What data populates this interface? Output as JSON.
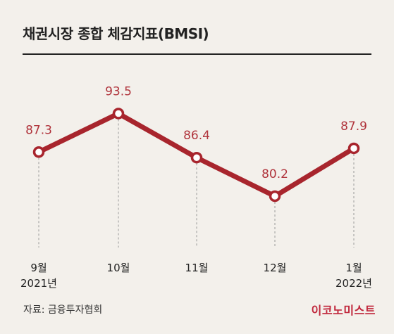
{
  "title": "채권시장 종합 체감지표(BMSI)",
  "source": "자료: 금융투자협회",
  "brand": "이코노미스트",
  "colors": {
    "line": "#a8252d",
    "label": "#b0343c",
    "background": "#f3f0eb"
  },
  "chart_data": {
    "type": "line",
    "title": "채권시장 종합 체감지표(BMSI)",
    "categories": [
      {
        "month": "9월",
        "year": "2021년"
      },
      {
        "month": "10월",
        "year": ""
      },
      {
        "month": "11월",
        "year": ""
      },
      {
        "month": "12월",
        "year": ""
      },
      {
        "month": "1월",
        "year": "2022년"
      }
    ],
    "values": [
      87.3,
      93.5,
      86.4,
      80.2,
      87.9
    ],
    "value_labels": [
      "87.3",
      "93.5",
      "86.4",
      "80.2",
      "87.9"
    ],
    "ylim": [
      75,
      100
    ],
    "grid": false,
    "legend": "none"
  }
}
